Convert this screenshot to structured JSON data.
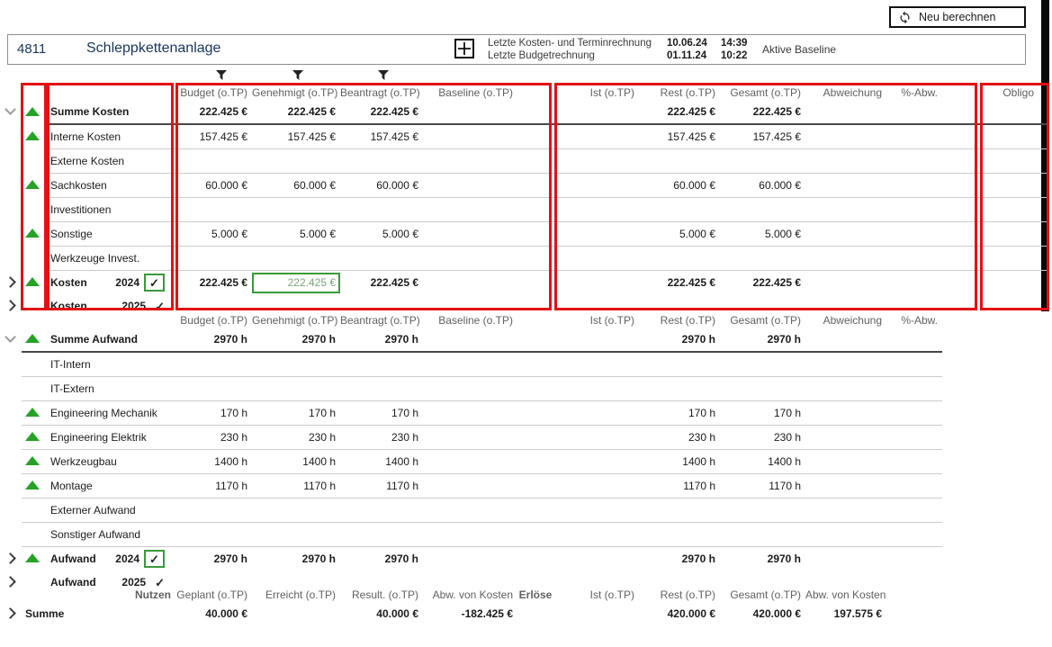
{
  "colors": {
    "navy": "#17365d",
    "positive_green": "#26a226",
    "highlight_border_green": "#3a9a3a",
    "highlight_text_green": "#7ba37b",
    "annotation_red": "#e31212"
  },
  "toolbar": {
    "recalculate_label": "Neu berechnen"
  },
  "project_bar": {
    "id": "4811",
    "name": "Schleppkettenanlage",
    "last_cost_calc_label": "Letzte Kosten- und Terminrechnung",
    "last_cost_calc_date": "10.06.24",
    "last_cost_calc_time": "14:39",
    "last_budget_calc_label": "Letzte Budgetrechnung",
    "last_budget_calc_date": "01.11.24",
    "last_budget_calc_time": "10:22",
    "baseline_label": "Aktive Baseline"
  },
  "costs": {
    "headers": [
      "Budget (o.TP)",
      "Genehmigt (o.TP)",
      "Beantragt (o.TP)",
      "Baseline (o.TP)",
      "Ist (o.TP)",
      "Rest (o.TP)",
      "Gesamt (o.TP)",
      "Abweichung",
      "%-Abw.",
      "Obligo"
    ],
    "keys": [
      "budget",
      "genehmigt",
      "beantragt",
      "baseline",
      "ist",
      "rest",
      "gesamt",
      "abweichung",
      "prozent-abw",
      "obligo"
    ],
    "rows": [
      {
        "label": "Summe Kosten",
        "bold": true,
        "trend": true,
        "expand": "down",
        "line": "dark",
        "values": [
          "222.425 €",
          "222.425 €",
          "222.425 €",
          "",
          "",
          "222.425 €",
          "222.425 €",
          "",
          "",
          ""
        ]
      },
      {
        "label": "Interne Kosten",
        "trend": true,
        "line": "light",
        "values": [
          "157.425 €",
          "157.425 €",
          "157.425 €",
          "",
          "",
          "157.425 €",
          "157.425 €",
          "",
          "",
          ""
        ]
      },
      {
        "label": "Externe Kosten",
        "line": "light",
        "values": [
          "",
          "",
          "",
          "",
          "",
          "",
          "",
          "",
          "",
          ""
        ]
      },
      {
        "label": "Sachkosten",
        "trend": true,
        "line": "light",
        "values": [
          "60.000 €",
          "60.000 €",
          "60.000 €",
          "",
          "",
          "60.000 €",
          "60.000 €",
          "",
          "",
          ""
        ]
      },
      {
        "label": "Investitionen",
        "line": "light",
        "values": [
          "",
          "",
          "",
          "",
          "",
          "",
          "",
          "",
          "",
          ""
        ]
      },
      {
        "label": "Sonstige",
        "trend": true,
        "line": "light",
        "values": [
          "5.000 €",
          "5.000 €",
          "5.000 €",
          "",
          "",
          "5.000 €",
          "5.000 €",
          "",
          "",
          ""
        ]
      },
      {
        "label": "Werkzeuge Invest.",
        "line": "light",
        "values": [
          "",
          "",
          "",
          "",
          "",
          "",
          "",
          "",
          "",
          ""
        ]
      },
      {
        "label": "Kosten",
        "year": "2024",
        "check": "boxed",
        "bold": true,
        "trend": true,
        "expand": "right",
        "line": "none",
        "highlight": 1,
        "values": [
          "222.425 €",
          "222.425 €",
          "222.425 €",
          "",
          "",
          "222.425 €",
          "222.425 €",
          "",
          "",
          ""
        ]
      },
      {
        "label": "Kosten",
        "year": "2025",
        "check": "plain",
        "bold": true,
        "expand": "right",
        "line": "none",
        "values": [
          "",
          "",
          "",
          "",
          "",
          "",
          "",
          "",
          "",
          ""
        ]
      }
    ]
  },
  "effort": {
    "headers": [
      "Budget (o.TP)",
      "Genehmigt (o.TP)",
      "Beantragt (o.TP)",
      "Baseline (o.TP)",
      "Ist (o.TP)",
      "Rest (o.TP)",
      "Gesamt (o.TP)",
      "Abweichung",
      "%-Abw."
    ],
    "keys": [
      "budget",
      "genehmigt",
      "beantragt",
      "baseline",
      "ist",
      "rest",
      "gesamt",
      "abweichung",
      "prozent-abw"
    ],
    "rows": [
      {
        "label": "Summe Aufwand",
        "bold": true,
        "trend": true,
        "expand": "down",
        "line": "dark",
        "values": [
          "2970 h",
          "2970 h",
          "2970 h",
          "",
          "",
          "2970 h",
          "2970 h",
          "",
          ""
        ]
      },
      {
        "label": "IT-Intern",
        "line": "light",
        "values": [
          "",
          "",
          "",
          "",
          "",
          "",
          "",
          "",
          ""
        ]
      },
      {
        "label": "IT-Extern",
        "line": "light",
        "values": [
          "",
          "",
          "",
          "",
          "",
          "",
          "",
          "",
          ""
        ]
      },
      {
        "label": "Engineering Mechanik",
        "trend": true,
        "line": "light",
        "values": [
          "170 h",
          "170 h",
          "170 h",
          "",
          "",
          "170 h",
          "170 h",
          "",
          ""
        ]
      },
      {
        "label": "Engineering Elektrik",
        "trend": true,
        "line": "light",
        "values": [
          "230 h",
          "230 h",
          "230 h",
          "",
          "",
          "230 h",
          "230 h",
          "",
          ""
        ]
      },
      {
        "label": "Werkzeugbau",
        "trend": true,
        "line": "light",
        "values": [
          "1400 h",
          "1400 h",
          "1400 h",
          "",
          "",
          "1400 h",
          "1400 h",
          "",
          ""
        ]
      },
      {
        "label": "Montage",
        "trend": true,
        "line": "light",
        "values": [
          "1170 h",
          "1170 h",
          "1170 h",
          "",
          "",
          "1170 h",
          "1170 h",
          "",
          ""
        ]
      },
      {
        "label": "Externer Aufwand",
        "line": "light",
        "values": [
          "",
          "",
          "",
          "",
          "",
          "",
          "",
          "",
          ""
        ]
      },
      {
        "label": "Sonstiger Aufwand",
        "line": "light",
        "values": [
          "",
          "",
          "",
          "",
          "",
          "",
          "",
          "",
          ""
        ]
      },
      {
        "label": "Aufwand",
        "year": "2024",
        "check": "boxed",
        "bold": true,
        "trend": true,
        "expand": "right",
        "line": "none",
        "values": [
          "2970 h",
          "2970 h",
          "2970 h",
          "",
          "",
          "2970 h",
          "2970 h",
          "",
          ""
        ]
      },
      {
        "label": "Aufwand",
        "year": "2025",
        "check": "plain",
        "bold": true,
        "expand": "right",
        "line": "none",
        "values": [
          "",
          "",
          "",
          "",
          "",
          "",
          "",
          "",
          ""
        ]
      }
    ]
  },
  "benefit": {
    "headers": [
      "Nutzen",
      "Geplant (o.TP)",
      "Erreicht (o.TP)",
      "Result. (o.TP)",
      "Abw. von Kosten",
      "Erlöse",
      "Ist (o.TP)",
      "Rest (o.TP)",
      "Gesamt (o.TP)",
      "Abw. von Kosten"
    ],
    "keys": [
      "geplant",
      "erreicht",
      "result",
      "abw-von-kosten",
      "ist",
      "rest",
      "gesamt",
      "abw-von-kosten-2"
    ],
    "rows": [
      {
        "label": "Summe",
        "bold": true,
        "expand": "right",
        "line": "none",
        "values": [
          "40.000 €",
          "",
          "40.000 €",
          "-182.425 €",
          "",
          "420.000 €",
          "420.000 €",
          "197.575 €"
        ]
      }
    ]
  }
}
